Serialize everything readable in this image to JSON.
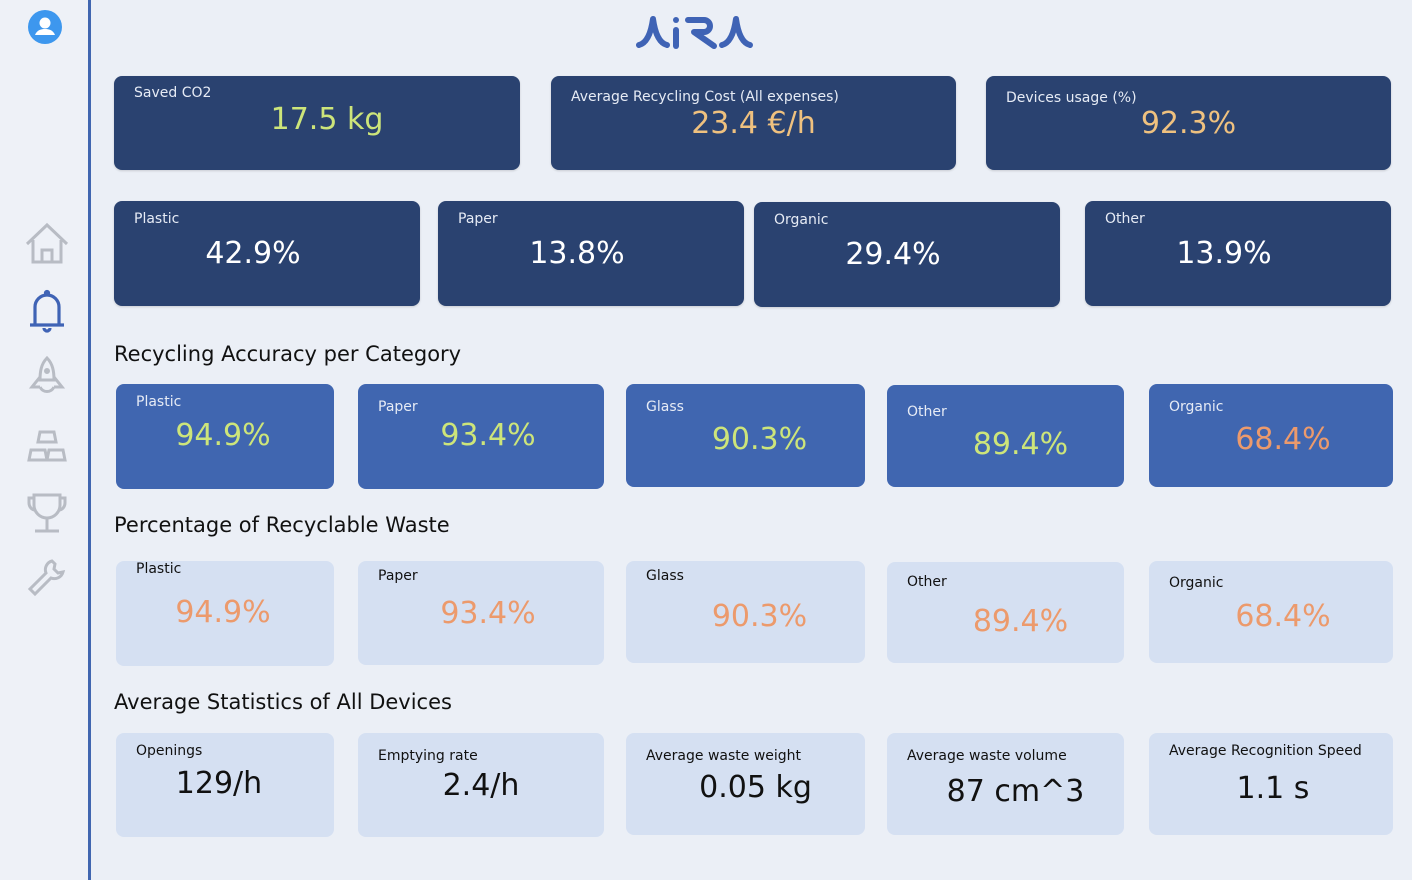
{
  "logo": {
    "text": "AiRA",
    "color": "#3f63b5"
  },
  "sidebar": {
    "items": [
      {
        "icon": "home-icon",
        "active": false
      },
      {
        "icon": "bell-icon",
        "active": true
      },
      {
        "icon": "rocket-icon",
        "active": false
      },
      {
        "icon": "blocks-icon",
        "active": false
      },
      {
        "icon": "trophy-icon",
        "active": false
      },
      {
        "icon": "wrench-icon",
        "active": false
      }
    ],
    "accent": "#4066b0",
    "inactive_color": "#b8bcc4"
  },
  "summary": [
    {
      "label": "Saved CO2",
      "value": "17.5 kg"
    },
    {
      "label": "Average Recycling Cost (All expenses)",
      "value": "23.4 €/h"
    },
    {
      "label": "Devices usage (%)",
      "value": "92.3%"
    }
  ],
  "composition": [
    {
      "label": "Plastic",
      "value": "42.9%"
    },
    {
      "label": "Paper",
      "value": "13.8%"
    },
    {
      "label": "Organic",
      "value": "29.4%"
    },
    {
      "label": "Other",
      "value": "13.9%"
    }
  ],
  "accuracy": {
    "title": "Recycling Accuracy per Category",
    "items": [
      {
        "label": "Plastic",
        "value": "94.9%"
      },
      {
        "label": "Paper",
        "value": "93.4%"
      },
      {
        "label": "Glass",
        "value": "90.3%"
      },
      {
        "label": "Other",
        "value": "89.4%"
      },
      {
        "label": "Organic",
        "value": "68.4%"
      }
    ]
  },
  "recyclable": {
    "title": "Percentage of Recyclable Waste",
    "items": [
      {
        "label": "Plastic",
        "value": "94.9%"
      },
      {
        "label": "Paper",
        "value": "93.4%"
      },
      {
        "label": "Glass",
        "value": "90.3%"
      },
      {
        "label": "Other",
        "value": "89.4%"
      },
      {
        "label": "Organic",
        "value": "68.4%"
      }
    ]
  },
  "averages": {
    "title": "Average Statistics of All Devices",
    "items": [
      {
        "label": "Openings",
        "value": "129/h"
      },
      {
        "label": "Emptying rate",
        "value": "2.4/h"
      },
      {
        "label": "Average waste weight",
        "value": "0.05 kg"
      },
      {
        "label": "Average waste volume",
        "value": "87 cm^3"
      },
      {
        "label": "Average Recognition Speed",
        "value": "1.1 s"
      }
    ]
  },
  "colors": {
    "navy": "#2a4270",
    "blue": "#4066b0",
    "light": "#d5e0f2",
    "good": "#cde57a",
    "warn": "#ec9a6c",
    "gold": "#efc17f"
  }
}
